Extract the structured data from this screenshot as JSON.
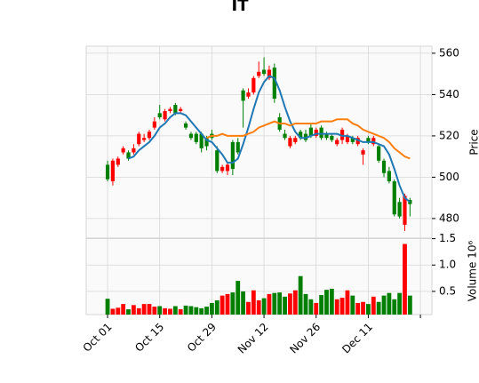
{
  "chart_data": [
    {
      "type": "candlestick",
      "title": "IT",
      "ylabel": "Price",
      "open": [
        499,
        508,
        509,
        514,
        509,
        514,
        521,
        519,
        522,
        527,
        529,
        532,
        533,
        531,
        533,
        524,
        519,
        517,
        514,
        515,
        519,
        503,
        505,
        506,
        504,
        512,
        537,
        541,
        548,
        551,
        550,
        552,
        538,
        523,
        519,
        519,
        519,
        519,
        518,
        520,
        523,
        519,
        519,
        518,
        518,
        523,
        520,
        517,
        519,
        513,
        517,
        519,
        508,
        502,
        498,
        482,
        481,
        491,
        487
      ],
      "high": [
        508,
        509,
        510,
        515,
        513,
        516,
        522,
        521,
        523,
        529,
        535,
        533,
        534,
        536,
        534,
        527,
        522,
        522,
        522,
        520,
        523,
        515,
        506,
        507,
        518,
        519,
        543,
        543,
        549,
        556,
        558,
        554,
        555,
        531,
        523,
        520,
        520,
        523,
        523,
        526,
        524,
        525,
        522,
        521,
        519,
        524,
        521,
        520,
        520,
        514,
        520,
        520,
        516,
        509,
        505,
        499,
        490,
        492,
        490
      ],
      "low": [
        498,
        496,
        505,
        511,
        508,
        511,
        515,
        517,
        518,
        523,
        528,
        527,
        531,
        530,
        531,
        523,
        518,
        516,
        512,
        513,
        518,
        502,
        502,
        501,
        501,
        511,
        524,
        538,
        540,
        548,
        549,
        547,
        536,
        522,
        518,
        514,
        516,
        518,
        517,
        519,
        519,
        518,
        518,
        517,
        515,
        516,
        516,
        516,
        515,
        506,
        516,
        515,
        507,
        500,
        497,
        481,
        480,
        474,
        481
      ],
      "close": [
        506,
        498,
        506,
        512,
        512,
        512,
        516,
        518,
        519,
        524,
        531,
        528,
        532,
        535,
        532,
        526,
        521,
        521,
        521,
        519,
        521,
        513,
        503,
        503,
        517,
        517,
        542,
        539,
        541,
        549,
        552,
        548,
        553,
        529,
        521,
        515,
        517,
        522,
        521,
        524,
        520,
        524,
        521,
        520,
        516,
        518,
        517,
        519,
        516,
        511,
        519,
        516,
        515,
        508,
        503,
        498,
        488,
        477,
        489
      ],
      "up_color": "#007f00",
      "down_color": "#ff0000",
      "series": [
        {
          "color": "#1f77b4",
          "values": [
            null,
            null,
            null,
            null,
            509,
            510,
            513,
            515,
            517,
            520,
            524,
            526,
            529,
            531,
            531,
            530,
            527,
            524,
            521,
            518,
            517,
            514,
            511,
            507,
            507,
            509,
            516,
            524,
            533,
            541,
            546,
            549,
            548,
            542,
            534,
            527,
            522,
            519,
            519,
            520,
            521,
            521,
            521,
            521,
            521,
            520,
            520,
            519,
            518,
            517,
            517,
            517,
            516,
            515,
            511,
            504,
            496,
            490,
            488
          ]
        },
        {
          "color": "#ff7f0e",
          "values": [
            null,
            null,
            null,
            null,
            null,
            null,
            null,
            null,
            null,
            null,
            null,
            null,
            null,
            null,
            null,
            null,
            null,
            null,
            null,
            519,
            520,
            520,
            521,
            520,
            520,
            520,
            520,
            521,
            522,
            524,
            525,
            526,
            527,
            526,
            526,
            525,
            526,
            526,
            526,
            526,
            526,
            527,
            527,
            527,
            528,
            528,
            528,
            526,
            525,
            523,
            522,
            521,
            520,
            519,
            517,
            514,
            512,
            510,
            509
          ]
        }
      ],
      "xlim": [
        -4.1,
        62.2
      ],
      "ylim": [
        470.5,
        563.4
      ],
      "yticks": [
        480,
        500,
        520,
        540,
        560
      ],
      "grid": true
    },
    {
      "type": "bar",
      "ylabel": "Volume  10⁶",
      "values": [
        0.36,
        0.17,
        0.19,
        0.26,
        0.16,
        0.24,
        0.18,
        0.26,
        0.26,
        0.21,
        0.22,
        0.18,
        0.17,
        0.22,
        0.16,
        0.23,
        0.22,
        0.2,
        0.18,
        0.21,
        0.28,
        0.33,
        0.42,
        0.45,
        0.48,
        0.7,
        0.5,
        0.3,
        0.52,
        0.33,
        0.37,
        0.45,
        0.47,
        0.48,
        0.4,
        0.46,
        0.52,
        0.79,
        0.45,
        0.35,
        0.28,
        0.43,
        0.53,
        0.55,
        0.35,
        0.38,
        0.52,
        0.42,
        0.28,
        0.3,
        0.26,
        0.4,
        0.3,
        0.42,
        0.47,
        0.35,
        0.47,
        1.4,
        0.42
      ],
      "xlim": [
        -4.1,
        62.2
      ],
      "ylim": [
        0.06,
        1.51
      ],
      "yticks": [
        0.5,
        {
          "value": 1,
          "label": "1.0"
        },
        1.5
      ],
      "xticks": [
        {
          "value": 0,
          "label": "Oct 01"
        },
        {
          "value": 10,
          "label": "Oct 15"
        },
        {
          "value": 20,
          "label": "Oct 29"
        },
        {
          "value": 30,
          "label": "Nov 12"
        },
        {
          "value": 40,
          "label": "Nov 26"
        },
        {
          "value": 50,
          "label": "Dec 11"
        },
        {
          "value": 60,
          "label": null
        }
      ],
      "grid": true
    }
  ]
}
